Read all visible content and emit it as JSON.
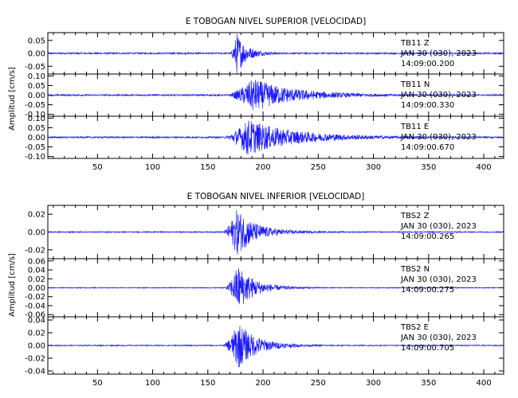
{
  "chart_data": [
    {
      "type": "line",
      "title": "E TOBOGAN NIVEL SUPERIOR [VELOCIDAD]",
      "ylabel": "Amplitud [cm/s]",
      "xlim": [
        5,
        418
      ],
      "xticks": [
        50,
        100,
        150,
        200,
        250,
        300,
        350,
        400
      ],
      "grid": false,
      "panels": [
        {
          "station": "TB11",
          "channel": "Z",
          "date": "JAN 30 (030), 2023",
          "time": "14:09:00.200",
          "ylim": [
            -0.08,
            0.08
          ],
          "yticks": [
            -0.05,
            0.0,
            0.05
          ],
          "ytick_labels": [
            "-0.05",
            "0.00",
            "0.05"
          ],
          "onset": 170,
          "peak_x": 176,
          "peak_amp": 0.075,
          "decay": 8,
          "noise": 0.003,
          "coda": 0.01
        },
        {
          "station": "TB11",
          "channel": "N",
          "date": "JAN 30 (030), 2023",
          "time": "14:09:00.330",
          "ylim": [
            -0.11,
            0.11
          ],
          "yticks": [
            -0.1,
            -0.05,
            0.0,
            0.05,
            0.1
          ],
          "ytick_labels": [
            "-0.10",
            "-0.05",
            "0.00",
            "0.05",
            "0.10"
          ],
          "onset": 165,
          "peak_x": 190,
          "peak_amp": 0.08,
          "decay": 32,
          "noise": 0.004,
          "coda": 0.012
        },
        {
          "station": "TB11",
          "channel": "E",
          "date": "JAN 30 (030), 2023",
          "time": "14:09:00.670",
          "ylim": [
            -0.11,
            0.11
          ],
          "yticks": [
            -0.1,
            -0.05,
            0.0,
            0.05,
            0.1
          ],
          "ytick_labels": [
            "-0.10",
            "-0.05",
            "0.00",
            "0.05",
            "0.10"
          ],
          "onset": 163,
          "peak_x": 185,
          "peak_amp": 0.085,
          "decay": 35,
          "noise": 0.004,
          "coda": 0.015
        }
      ]
    },
    {
      "type": "line",
      "title": "E TOBOGAN NIVEL INFERIOR [VELOCIDAD]",
      "ylabel": "Amplitud [cm/s]",
      "xlim": [
        5,
        418
      ],
      "xticks": [
        50,
        100,
        150,
        200,
        250,
        300,
        350,
        400
      ],
      "grid": false,
      "panels": [
        {
          "station": "TBS2",
          "channel": "Z",
          "date": "JAN 30 (030), 2023",
          "time": "14:09:00.265",
          "ylim": [
            -0.03,
            0.03
          ],
          "yticks": [
            -0.02,
            0.0,
            0.02
          ],
          "ytick_labels": [
            "-0.02",
            "0.00",
            "0.02"
          ],
          "onset": 163,
          "peak_x": 176,
          "peak_amp": 0.025,
          "decay": 15,
          "noise": 0.0006,
          "coda": 0.003
        },
        {
          "station": "TBS2",
          "channel": "N",
          "date": "JAN 30 (030), 2023",
          "time": "14:09:00.275",
          "ylim": [
            -0.065,
            0.065
          ],
          "yticks": [
            -0.06,
            -0.04,
            -0.02,
            0.0,
            0.02,
            0.04,
            0.06
          ],
          "ytick_labels": [
            "-0.06",
            "-0.04",
            "-0.02",
            "0.00",
            "0.02",
            "0.04",
            "0.06"
          ],
          "onset": 165,
          "peak_x": 177,
          "peak_amp": 0.05,
          "decay": 14,
          "noise": 0.001,
          "coda": 0.004
        },
        {
          "station": "TBS2",
          "channel": "E",
          "date": "JAN 30 (030), 2023",
          "time": "14:09:00.705",
          "ylim": [
            -0.045,
            0.045
          ],
          "yticks": [
            -0.04,
            -0.02,
            0.0,
            0.02,
            0.04
          ],
          "ytick_labels": [
            "-0.04",
            "-0.02",
            "0.00",
            "0.02",
            "0.04"
          ],
          "onset": 163,
          "peak_x": 177,
          "peak_amp": 0.035,
          "decay": 16,
          "noise": 0.0008,
          "coda": 0.003
        }
      ]
    }
  ]
}
